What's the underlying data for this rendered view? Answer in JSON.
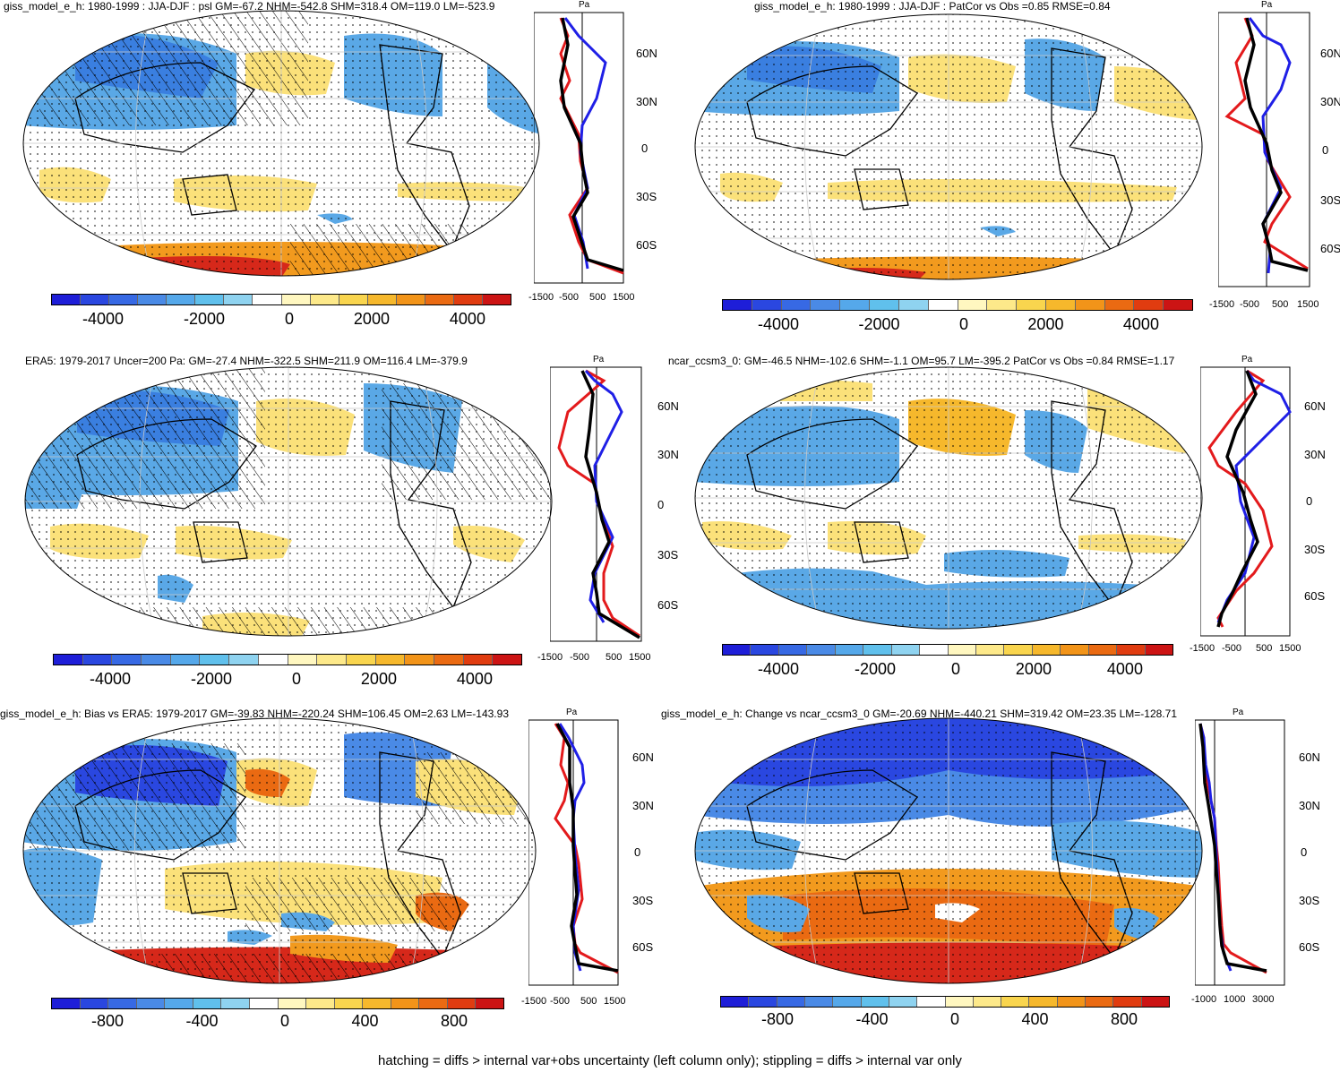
{
  "colorbar_colors": [
    "#1e1ed8",
    "#2a47e0",
    "#3769e4",
    "#4a8ae6",
    "#55a8ea",
    "#60c0ec",
    "#8fd3f0",
    "#ffffff",
    "#fff7c0",
    "#fde98a",
    "#f9d54e",
    "#f6b82c",
    "#f29419",
    "#ea6a12",
    "#e03c10",
    "#cc1414"
  ],
  "colors": {
    "ocean": "#ffffff",
    "land_line": "#000000",
    "blue": "#5aa8e6",
    "deep_blue": "#3a5fd9",
    "yellow": "#fbe17a",
    "orange": "#f29a1e",
    "red": "#d6281a",
    "obs_line": "#e31a1c",
    "model_line": "#1f1fe6",
    "mean_line": "#000000"
  },
  "panels": [
    {
      "id": "p1",
      "title": "giss_model_e_h: 1980-1999 : JJA-DJF : psl GM=-67.2 NHM=-542.8 SHM=318.4 OM=119.0 LM=-523.9",
      "colorbar_labels": [
        "-4000",
        "-2000",
        "0",
        "2000",
        "4000"
      ],
      "profile_ticks": [
        "-1500",
        "-500",
        "500",
        "1500"
      ],
      "profile_unit": "Pa",
      "lat_labels": [
        "60N",
        "30N",
        "0",
        "30S",
        "60S"
      ]
    },
    {
      "id": "p2",
      "title": "giss_model_e_h: 1980-1999 : JJA-DJF : PatCor vs Obs =0.85 RMSE=0.84",
      "colorbar_labels": [
        "-4000",
        "-2000",
        "0",
        "2000",
        "4000"
      ],
      "profile_ticks": [
        "-1500",
        "-500",
        "500",
        "1500"
      ],
      "profile_unit": "Pa",
      "lat_labels": [
        "60N",
        "30N",
        "0",
        "30S",
        "60S"
      ]
    },
    {
      "id": "p3",
      "title": "ERA5: 1979-2017 Uncer=200 Pa: GM=-27.4 NHM=-322.5 SHM=211.9 OM=116.4 LM=-379.9",
      "colorbar_labels": [
        "-4000",
        "-2000",
        "0",
        "2000",
        "4000"
      ],
      "profile_ticks": [
        "-1500",
        "-500",
        "500",
        "1500"
      ],
      "profile_unit": "Pa",
      "lat_labels": [
        "60N",
        "30N",
        "0",
        "30S",
        "60S"
      ]
    },
    {
      "id": "p4",
      "title": "ncar_ccsm3_0: GM=-46.5 NHM=-102.6 SHM=-1.1 OM=95.7 LM=-395.2 PatCor vs Obs =0.84 RMSE=1.17",
      "colorbar_labels": [
        "-4000",
        "-2000",
        "0",
        "2000",
        "4000"
      ],
      "profile_ticks": [
        "-1500",
        "-500",
        "500",
        "1500"
      ],
      "profile_unit": "Pa",
      "lat_labels": [
        "60N",
        "30N",
        "0",
        "30S",
        "60S"
      ]
    },
    {
      "id": "p5",
      "title": "giss_model_e_h: Bias vs ERA5: 1979-2017 GM=-39.83 NHM=-220.24 SHM=106.45 OM=2.63 LM=-143.93",
      "colorbar_labels": [
        "-800",
        "-400",
        "0",
        "400",
        "800"
      ],
      "profile_ticks": [
        "-1500",
        "-500",
        "500",
        "1500"
      ],
      "profile_unit": "Pa",
      "lat_labels": [
        "60N",
        "30N",
        "0",
        "30S",
        "60S"
      ]
    },
    {
      "id": "p6",
      "title": "giss_model_e_h: Change vs ncar_ccsm3_0 GM=-20.69 NHM=-440.21 SHM=319.42 OM=23.35 LM=-128.71",
      "colorbar_labels": [
        "-800",
        "-400",
        "0",
        "400",
        "800"
      ],
      "profile_ticks": [
        "-1000",
        "1000",
        "3000"
      ],
      "profile_unit": "Pa",
      "lat_labels": [
        "60N",
        "30N",
        "0",
        "30S",
        "60S"
      ]
    }
  ],
  "footer": "hatching = diffs > internal var+obs uncertainty (left column only); stippling = diffs > internal var only"
}
